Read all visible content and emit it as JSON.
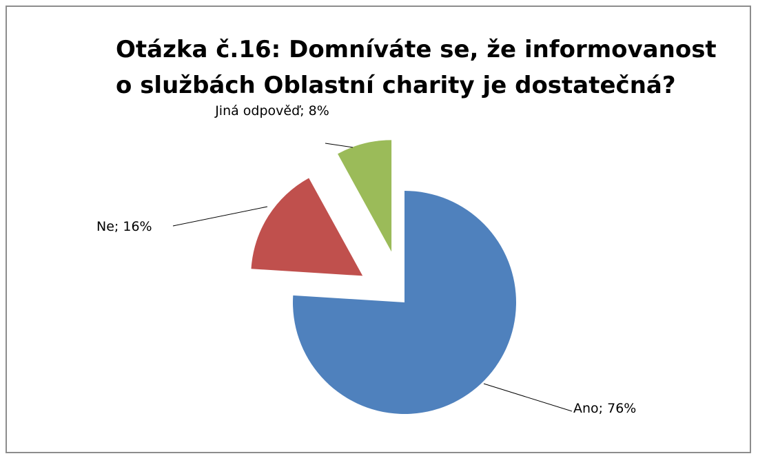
{
  "chart_data": {
    "type": "pie",
    "title": "Otázka č.16:  Domníváte se, že informovanost o službách Oblastní charity je dostatečná?",
    "categories": [
      "Ano",
      "Ne",
      "Jiná odpověď"
    ],
    "values": [
      76,
      16,
      8
    ],
    "value_labels": [
      "76%",
      "16%",
      "8%"
    ],
    "label_separator": "; ",
    "colors": [
      "#4f81bd",
      "#c0504d",
      "#9bbb59"
    ]
  }
}
